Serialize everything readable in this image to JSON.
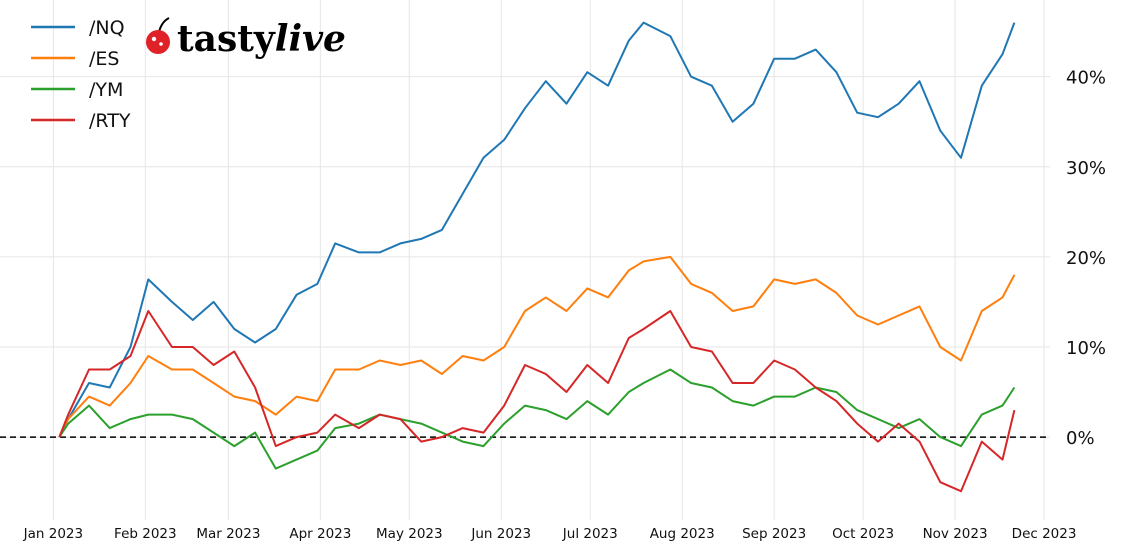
{
  "chart_data": {
    "type": "line",
    "title": "",
    "xlabel": "",
    "ylabel": "",
    "x_ticks": [
      "Jan 2023",
      "Feb 2023",
      "Mar 2023",
      "Apr 2023",
      "May 2023",
      "Jun 2023",
      "Jul 2023",
      "Aug 2023",
      "Sep 2023",
      "Oct 2023",
      "Nov 2023",
      "Dec 2023"
    ],
    "x_tick_dates": [
      "2023-01-01",
      "2023-02-01",
      "2023-03-01",
      "2023-04-01",
      "2023-05-01",
      "2023-06-01",
      "2023-07-01",
      "2023-08-01",
      "2023-09-01",
      "2023-10-01",
      "2023-11-01",
      "2023-12-01"
    ],
    "y_ticks": [
      0,
      10,
      20,
      30,
      40
    ],
    "y_tick_labels": [
      "0%",
      "10%",
      "20%",
      "30%",
      "40%"
    ],
    "y_axis_side": "right",
    "xlim": [
      "2022-12-14",
      "2023-12-03"
    ],
    "ylim": [
      -9.2,
      47.4
    ],
    "grid": true,
    "zero_line": "dashed black",
    "legend_position": "top-left",
    "x": [
      "2023-01-03",
      "2023-01-06",
      "2023-01-13",
      "2023-01-20",
      "2023-01-27",
      "2023-02-02",
      "2023-02-10",
      "2023-02-17",
      "2023-02-24",
      "2023-03-03",
      "2023-03-10",
      "2023-03-17",
      "2023-03-24",
      "2023-03-31",
      "2023-04-06",
      "2023-04-14",
      "2023-04-21",
      "2023-04-28",
      "2023-05-05",
      "2023-05-12",
      "2023-05-19",
      "2023-05-26",
      "2023-06-02",
      "2023-06-09",
      "2023-06-16",
      "2023-06-23",
      "2023-06-30",
      "2023-07-07",
      "2023-07-14",
      "2023-07-19",
      "2023-07-28",
      "2023-08-04",
      "2023-08-11",
      "2023-08-18",
      "2023-08-25",
      "2023-09-01",
      "2023-09-08",
      "2023-09-15",
      "2023-09-22",
      "2023-09-29",
      "2023-10-06",
      "2023-10-13",
      "2023-10-20",
      "2023-10-27",
      "2023-11-03",
      "2023-11-10",
      "2023-11-17",
      "2023-11-21"
    ],
    "series": [
      {
        "name": "/NQ",
        "color": "#1f77b4",
        "values": [
          0,
          2,
          6,
          5.5,
          10,
          17.5,
          15,
          13,
          15,
          12,
          10.5,
          12,
          15.8,
          17,
          21.5,
          20.5,
          20.5,
          21.5,
          22,
          23,
          27,
          31,
          33,
          36.5,
          39.5,
          37,
          40.5,
          39,
          44,
          46,
          44.5,
          40,
          39,
          35,
          37,
          42,
          42,
          43,
          40.5,
          36,
          35.5,
          37,
          39.5,
          34,
          31,
          39,
          42.5,
          46
        ]
      },
      {
        "name": "/ES",
        "color": "#ff7f0e",
        "values": [
          0,
          2,
          4.5,
          3.5,
          6,
          9,
          7.5,
          7.5,
          6,
          4.5,
          4,
          2.5,
          4.5,
          4,
          7.5,
          7.5,
          8.5,
          8,
          8.5,
          7,
          9,
          8.5,
          10,
          14,
          15.5,
          14,
          16.5,
          15.5,
          18.5,
          19.5,
          20,
          17,
          16,
          14,
          14.5,
          17.5,
          17,
          17.5,
          16,
          13.5,
          12.5,
          13.5,
          14.5,
          10,
          8.5,
          14,
          15.5,
          18
        ]
      },
      {
        "name": "/YM",
        "color": "#2ca02c",
        "values": [
          0,
          1.5,
          3.5,
          1,
          2,
          2.5,
          2.5,
          2,
          0.5,
          -1,
          0.5,
          -3.5,
          -2.5,
          -1.5,
          1,
          1.5,
          2.5,
          2,
          1.5,
          0.5,
          -0.5,
          -1,
          1.5,
          3.5,
          3,
          2,
          4,
          2.5,
          5,
          6,
          7.5,
          6,
          5.5,
          4,
          3.5,
          4.5,
          4.5,
          5.5,
          5,
          3,
          2,
          1,
          2,
          0,
          -1,
          2.5,
          3.5,
          5.5
        ]
      },
      {
        "name": "/RTY",
        "color": "#d62728",
        "values": [
          0,
          2.5,
          7.5,
          7.5,
          9,
          14,
          10,
          10,
          8,
          9.5,
          5.5,
          -1,
          0,
          0.5,
          2.5,
          1,
          2.5,
          2,
          -0.5,
          0,
          1,
          0.5,
          3.5,
          8,
          7,
          5,
          8,
          6,
          11,
          12,
          14,
          10,
          9.5,
          6,
          6,
          8.5,
          7.5,
          5.5,
          4,
          1.5,
          -0.5,
          1.5,
          -0.5,
          -5,
          -6,
          -0.5,
          -2.5,
          3
        ]
      }
    ]
  },
  "logo": {
    "text": "tastylive",
    "icon": "cherry-icon",
    "color": "#e02127"
  }
}
